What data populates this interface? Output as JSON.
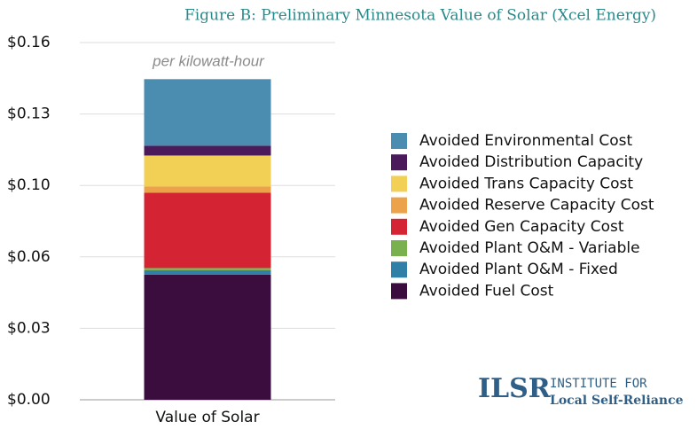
{
  "chart_data": {
    "type": "stacked-bar",
    "title": "Figure B: Preliminary Minnesota Value of Solar (Xcel Energy)",
    "annotation": "per kilowatt-hour",
    "categories": [
      "Value of Solar"
    ],
    "series": [
      {
        "name": "Avoided Fuel Cost",
        "color": "#3b0d3f",
        "values": [
          0.056
        ]
      },
      {
        "name": "Avoided Plant O&M - Fixed",
        "color": "#2f7fa6",
        "values": [
          0.002
        ]
      },
      {
        "name": "Avoided Plant O&M - Variable",
        "color": "#7ab14f",
        "values": [
          0.001
        ]
      },
      {
        "name": "Avoided Gen Capacity Cost",
        "color": "#d42433",
        "values": [
          0.0337
        ]
      },
      {
        "name": "Avoided Reserve Capacity Cost",
        "color": "#eba24a",
        "values": [
          0.0028
        ]
      },
      {
        "name": "Avoided Trans Capacity Cost",
        "color": "#f2cf55",
        "values": [
          0.0139
        ]
      },
      {
        "name": "Avoided Distribution Capacity",
        "color": "#4b1a5a",
        "values": [
          0.0044
        ]
      },
      {
        "name": "Avoided Environmental Cost",
        "color": "#4a8db0",
        "values": [
          0.0298
        ]
      }
    ],
    "ylim": [
      0,
      0.16
    ],
    "yticks": [
      {
        "value": 0,
        "label": "$0.00"
      },
      {
        "value": 0.032,
        "label": "$0.03"
      },
      {
        "value": 0.064,
        "label": "$0.06"
      },
      {
        "value": 0.096,
        "label": "$0.10"
      },
      {
        "value": 0.128,
        "label": "$0.13"
      },
      {
        "value": 0.16,
        "label": "$0.16"
      }
    ],
    "grid": true,
    "legend": "right"
  },
  "logo": {
    "mark": "ILSR",
    "line1": "INSTITUTE FOR",
    "line2": "Local Self-Reliance"
  }
}
